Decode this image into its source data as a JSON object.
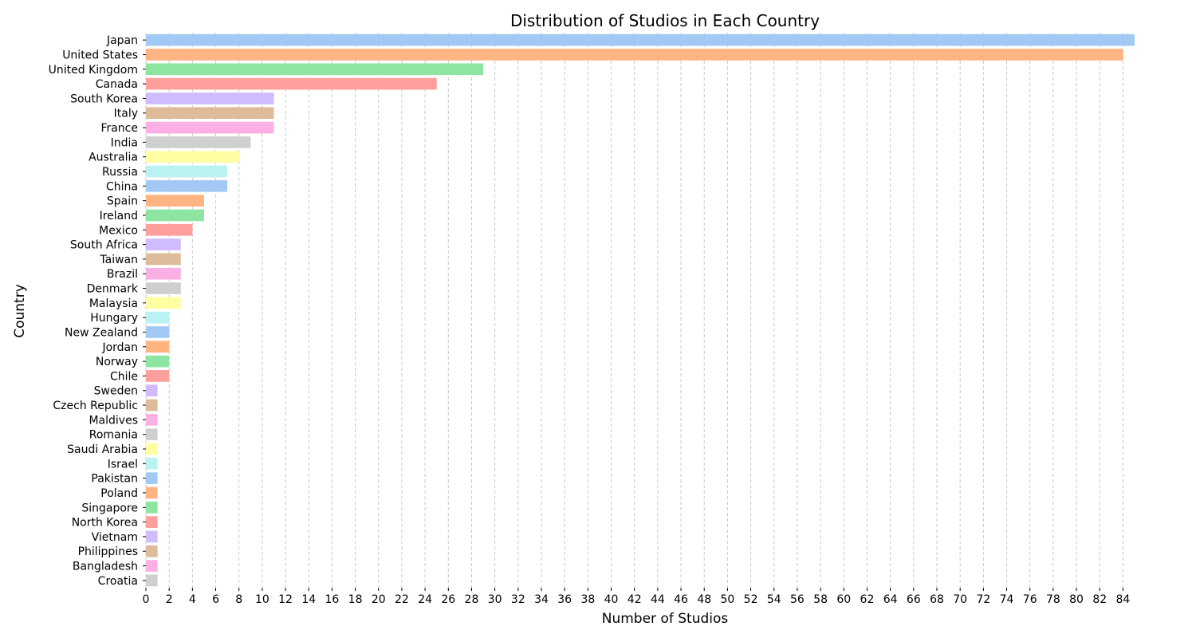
{
  "chart_data": {
    "type": "bar",
    "orientation": "horizontal",
    "title": "Distribution of Studios in Each Country",
    "xlabel": "Number of Studios",
    "ylabel": "Country",
    "xlim": [
      0,
      85
    ],
    "xticks": [
      0,
      2,
      4,
      6,
      8,
      10,
      12,
      14,
      16,
      18,
      20,
      22,
      24,
      26,
      28,
      30,
      32,
      34,
      36,
      38,
      40,
      42,
      44,
      46,
      48,
      50,
      52,
      54,
      56,
      58,
      60,
      62,
      64,
      66,
      68,
      70,
      72,
      74,
      76,
      78,
      80,
      82,
      84
    ],
    "grid": "vertical dashed",
    "categories": [
      "Japan",
      "United States",
      "United Kingdom",
      "Canada",
      "South Korea",
      "Italy",
      "France",
      "India",
      "Australia",
      "Russia",
      "China",
      "Spain",
      "Ireland",
      "Mexico",
      "South Africa",
      "Taiwan",
      "Brazil",
      "Denmark",
      "Malaysia",
      "Hungary",
      "New Zealand",
      "Jordan",
      "Norway",
      "Chile",
      "Sweden",
      "Czech Republic",
      "Maldives",
      "Romania",
      "Saudi Arabia",
      "Israel",
      "Pakistan",
      "Poland",
      "Singapore",
      "North Korea",
      "Vietnam",
      "Philippines",
      "Bangladesh",
      "Croatia"
    ],
    "values": [
      85,
      84,
      29,
      25,
      11,
      11,
      11,
      9,
      8,
      7,
      7,
      5,
      5,
      4,
      3,
      3,
      3,
      3,
      3,
      2,
      2,
      2,
      2,
      2,
      1,
      1,
      1,
      1,
      1,
      1,
      1,
      1,
      1,
      1,
      1,
      1,
      1,
      1
    ],
    "palette": [
      "#a1c9f4",
      "#ffb482",
      "#8de5a1",
      "#ff9f9b",
      "#d0bbff",
      "#debb9b",
      "#fab0e4",
      "#cfcfcf",
      "#fffea3",
      "#b9f2f0"
    ]
  }
}
